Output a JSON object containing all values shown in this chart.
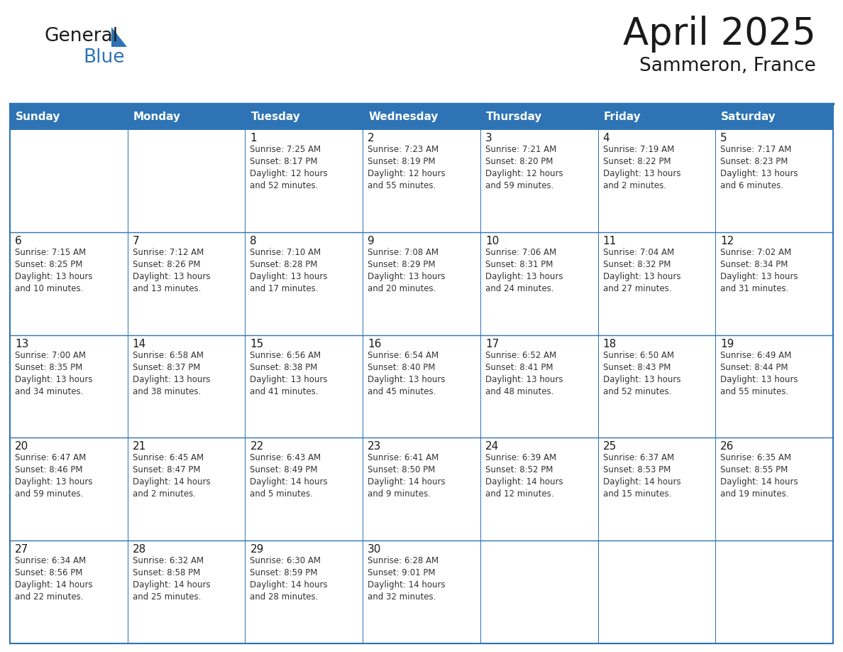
{
  "title": "April 2025",
  "subtitle": "Sammeron, France",
  "header_bg": "#2E74B5",
  "header_text_color": "#FFFFFF",
  "border_color": "#2E74B5",
  "cell_border_color": "#B0C4D8",
  "day_names": [
    "Sunday",
    "Monday",
    "Tuesday",
    "Wednesday",
    "Thursday",
    "Friday",
    "Saturday"
  ],
  "weeks": [
    [
      {
        "day": "",
        "info": ""
      },
      {
        "day": "",
        "info": ""
      },
      {
        "day": "1",
        "info": "Sunrise: 7:25 AM\nSunset: 8:17 PM\nDaylight: 12 hours\nand 52 minutes."
      },
      {
        "day": "2",
        "info": "Sunrise: 7:23 AM\nSunset: 8:19 PM\nDaylight: 12 hours\nand 55 minutes."
      },
      {
        "day": "3",
        "info": "Sunrise: 7:21 AM\nSunset: 8:20 PM\nDaylight: 12 hours\nand 59 minutes."
      },
      {
        "day": "4",
        "info": "Sunrise: 7:19 AM\nSunset: 8:22 PM\nDaylight: 13 hours\nand 2 minutes."
      },
      {
        "day": "5",
        "info": "Sunrise: 7:17 AM\nSunset: 8:23 PM\nDaylight: 13 hours\nand 6 minutes."
      }
    ],
    [
      {
        "day": "6",
        "info": "Sunrise: 7:15 AM\nSunset: 8:25 PM\nDaylight: 13 hours\nand 10 minutes."
      },
      {
        "day": "7",
        "info": "Sunrise: 7:12 AM\nSunset: 8:26 PM\nDaylight: 13 hours\nand 13 minutes."
      },
      {
        "day": "8",
        "info": "Sunrise: 7:10 AM\nSunset: 8:28 PM\nDaylight: 13 hours\nand 17 minutes."
      },
      {
        "day": "9",
        "info": "Sunrise: 7:08 AM\nSunset: 8:29 PM\nDaylight: 13 hours\nand 20 minutes."
      },
      {
        "day": "10",
        "info": "Sunrise: 7:06 AM\nSunset: 8:31 PM\nDaylight: 13 hours\nand 24 minutes."
      },
      {
        "day": "11",
        "info": "Sunrise: 7:04 AM\nSunset: 8:32 PM\nDaylight: 13 hours\nand 27 minutes."
      },
      {
        "day": "12",
        "info": "Sunrise: 7:02 AM\nSunset: 8:34 PM\nDaylight: 13 hours\nand 31 minutes."
      }
    ],
    [
      {
        "day": "13",
        "info": "Sunrise: 7:00 AM\nSunset: 8:35 PM\nDaylight: 13 hours\nand 34 minutes."
      },
      {
        "day": "14",
        "info": "Sunrise: 6:58 AM\nSunset: 8:37 PM\nDaylight: 13 hours\nand 38 minutes."
      },
      {
        "day": "15",
        "info": "Sunrise: 6:56 AM\nSunset: 8:38 PM\nDaylight: 13 hours\nand 41 minutes."
      },
      {
        "day": "16",
        "info": "Sunrise: 6:54 AM\nSunset: 8:40 PM\nDaylight: 13 hours\nand 45 minutes."
      },
      {
        "day": "17",
        "info": "Sunrise: 6:52 AM\nSunset: 8:41 PM\nDaylight: 13 hours\nand 48 minutes."
      },
      {
        "day": "18",
        "info": "Sunrise: 6:50 AM\nSunset: 8:43 PM\nDaylight: 13 hours\nand 52 minutes."
      },
      {
        "day": "19",
        "info": "Sunrise: 6:49 AM\nSunset: 8:44 PM\nDaylight: 13 hours\nand 55 minutes."
      }
    ],
    [
      {
        "day": "20",
        "info": "Sunrise: 6:47 AM\nSunset: 8:46 PM\nDaylight: 13 hours\nand 59 minutes."
      },
      {
        "day": "21",
        "info": "Sunrise: 6:45 AM\nSunset: 8:47 PM\nDaylight: 14 hours\nand 2 minutes."
      },
      {
        "day": "22",
        "info": "Sunrise: 6:43 AM\nSunset: 8:49 PM\nDaylight: 14 hours\nand 5 minutes."
      },
      {
        "day": "23",
        "info": "Sunrise: 6:41 AM\nSunset: 8:50 PM\nDaylight: 14 hours\nand 9 minutes."
      },
      {
        "day": "24",
        "info": "Sunrise: 6:39 AM\nSunset: 8:52 PM\nDaylight: 14 hours\nand 12 minutes."
      },
      {
        "day": "25",
        "info": "Sunrise: 6:37 AM\nSunset: 8:53 PM\nDaylight: 14 hours\nand 15 minutes."
      },
      {
        "day": "26",
        "info": "Sunrise: 6:35 AM\nSunset: 8:55 PM\nDaylight: 14 hours\nand 19 minutes."
      }
    ],
    [
      {
        "day": "27",
        "info": "Sunrise: 6:34 AM\nSunset: 8:56 PM\nDaylight: 14 hours\nand 22 minutes."
      },
      {
        "day": "28",
        "info": "Sunrise: 6:32 AM\nSunset: 8:58 PM\nDaylight: 14 hours\nand 25 minutes."
      },
      {
        "day": "29",
        "info": "Sunrise: 6:30 AM\nSunset: 8:59 PM\nDaylight: 14 hours\nand 28 minutes."
      },
      {
        "day": "30",
        "info": "Sunrise: 6:28 AM\nSunset: 9:01 PM\nDaylight: 14 hours\nand 32 minutes."
      },
      {
        "day": "",
        "info": ""
      },
      {
        "day": "",
        "info": ""
      },
      {
        "day": "",
        "info": ""
      }
    ]
  ]
}
